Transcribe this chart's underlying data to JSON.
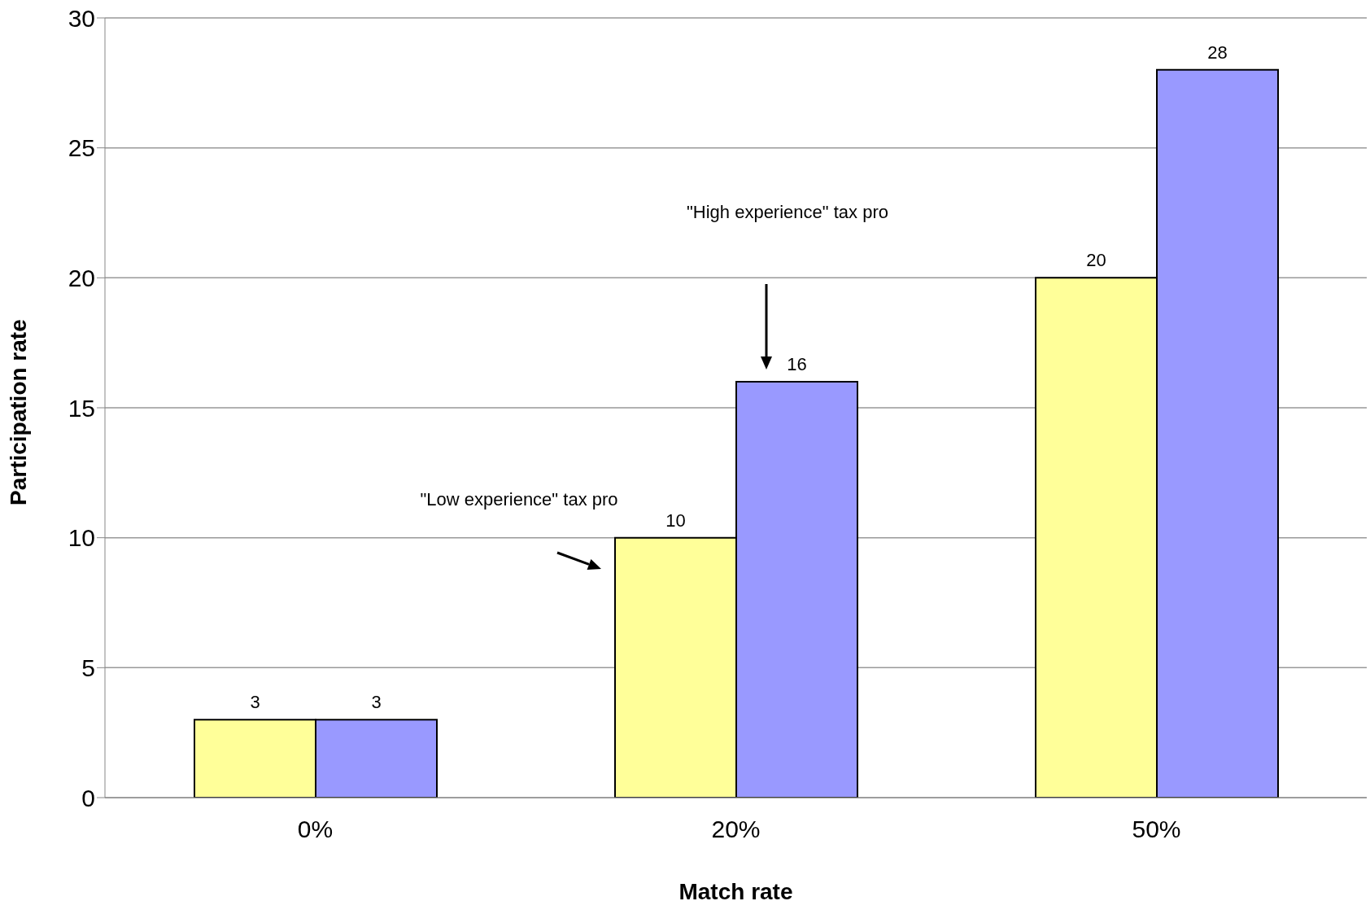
{
  "chart_data": {
    "type": "bar",
    "xlabel": "Match rate",
    "ylabel": "Participation rate",
    "categories": [
      "0%",
      "20%",
      "50%"
    ],
    "series": [
      {
        "color": "#ffff99",
        "values": [
          3,
          10,
          20
        ]
      },
      {
        "color": "#9999ff",
        "values": [
          3,
          16,
          28
        ]
      }
    ],
    "ylim": [
      0,
      30
    ],
    "yticks": [
      0,
      5,
      10,
      15,
      20,
      25,
      30
    ],
    "grid": "y",
    "data_labels": true,
    "legend": false,
    "annotations": [
      "\"Low experience\" tax pro",
      "\"High experience\" tax pro"
    ]
  }
}
